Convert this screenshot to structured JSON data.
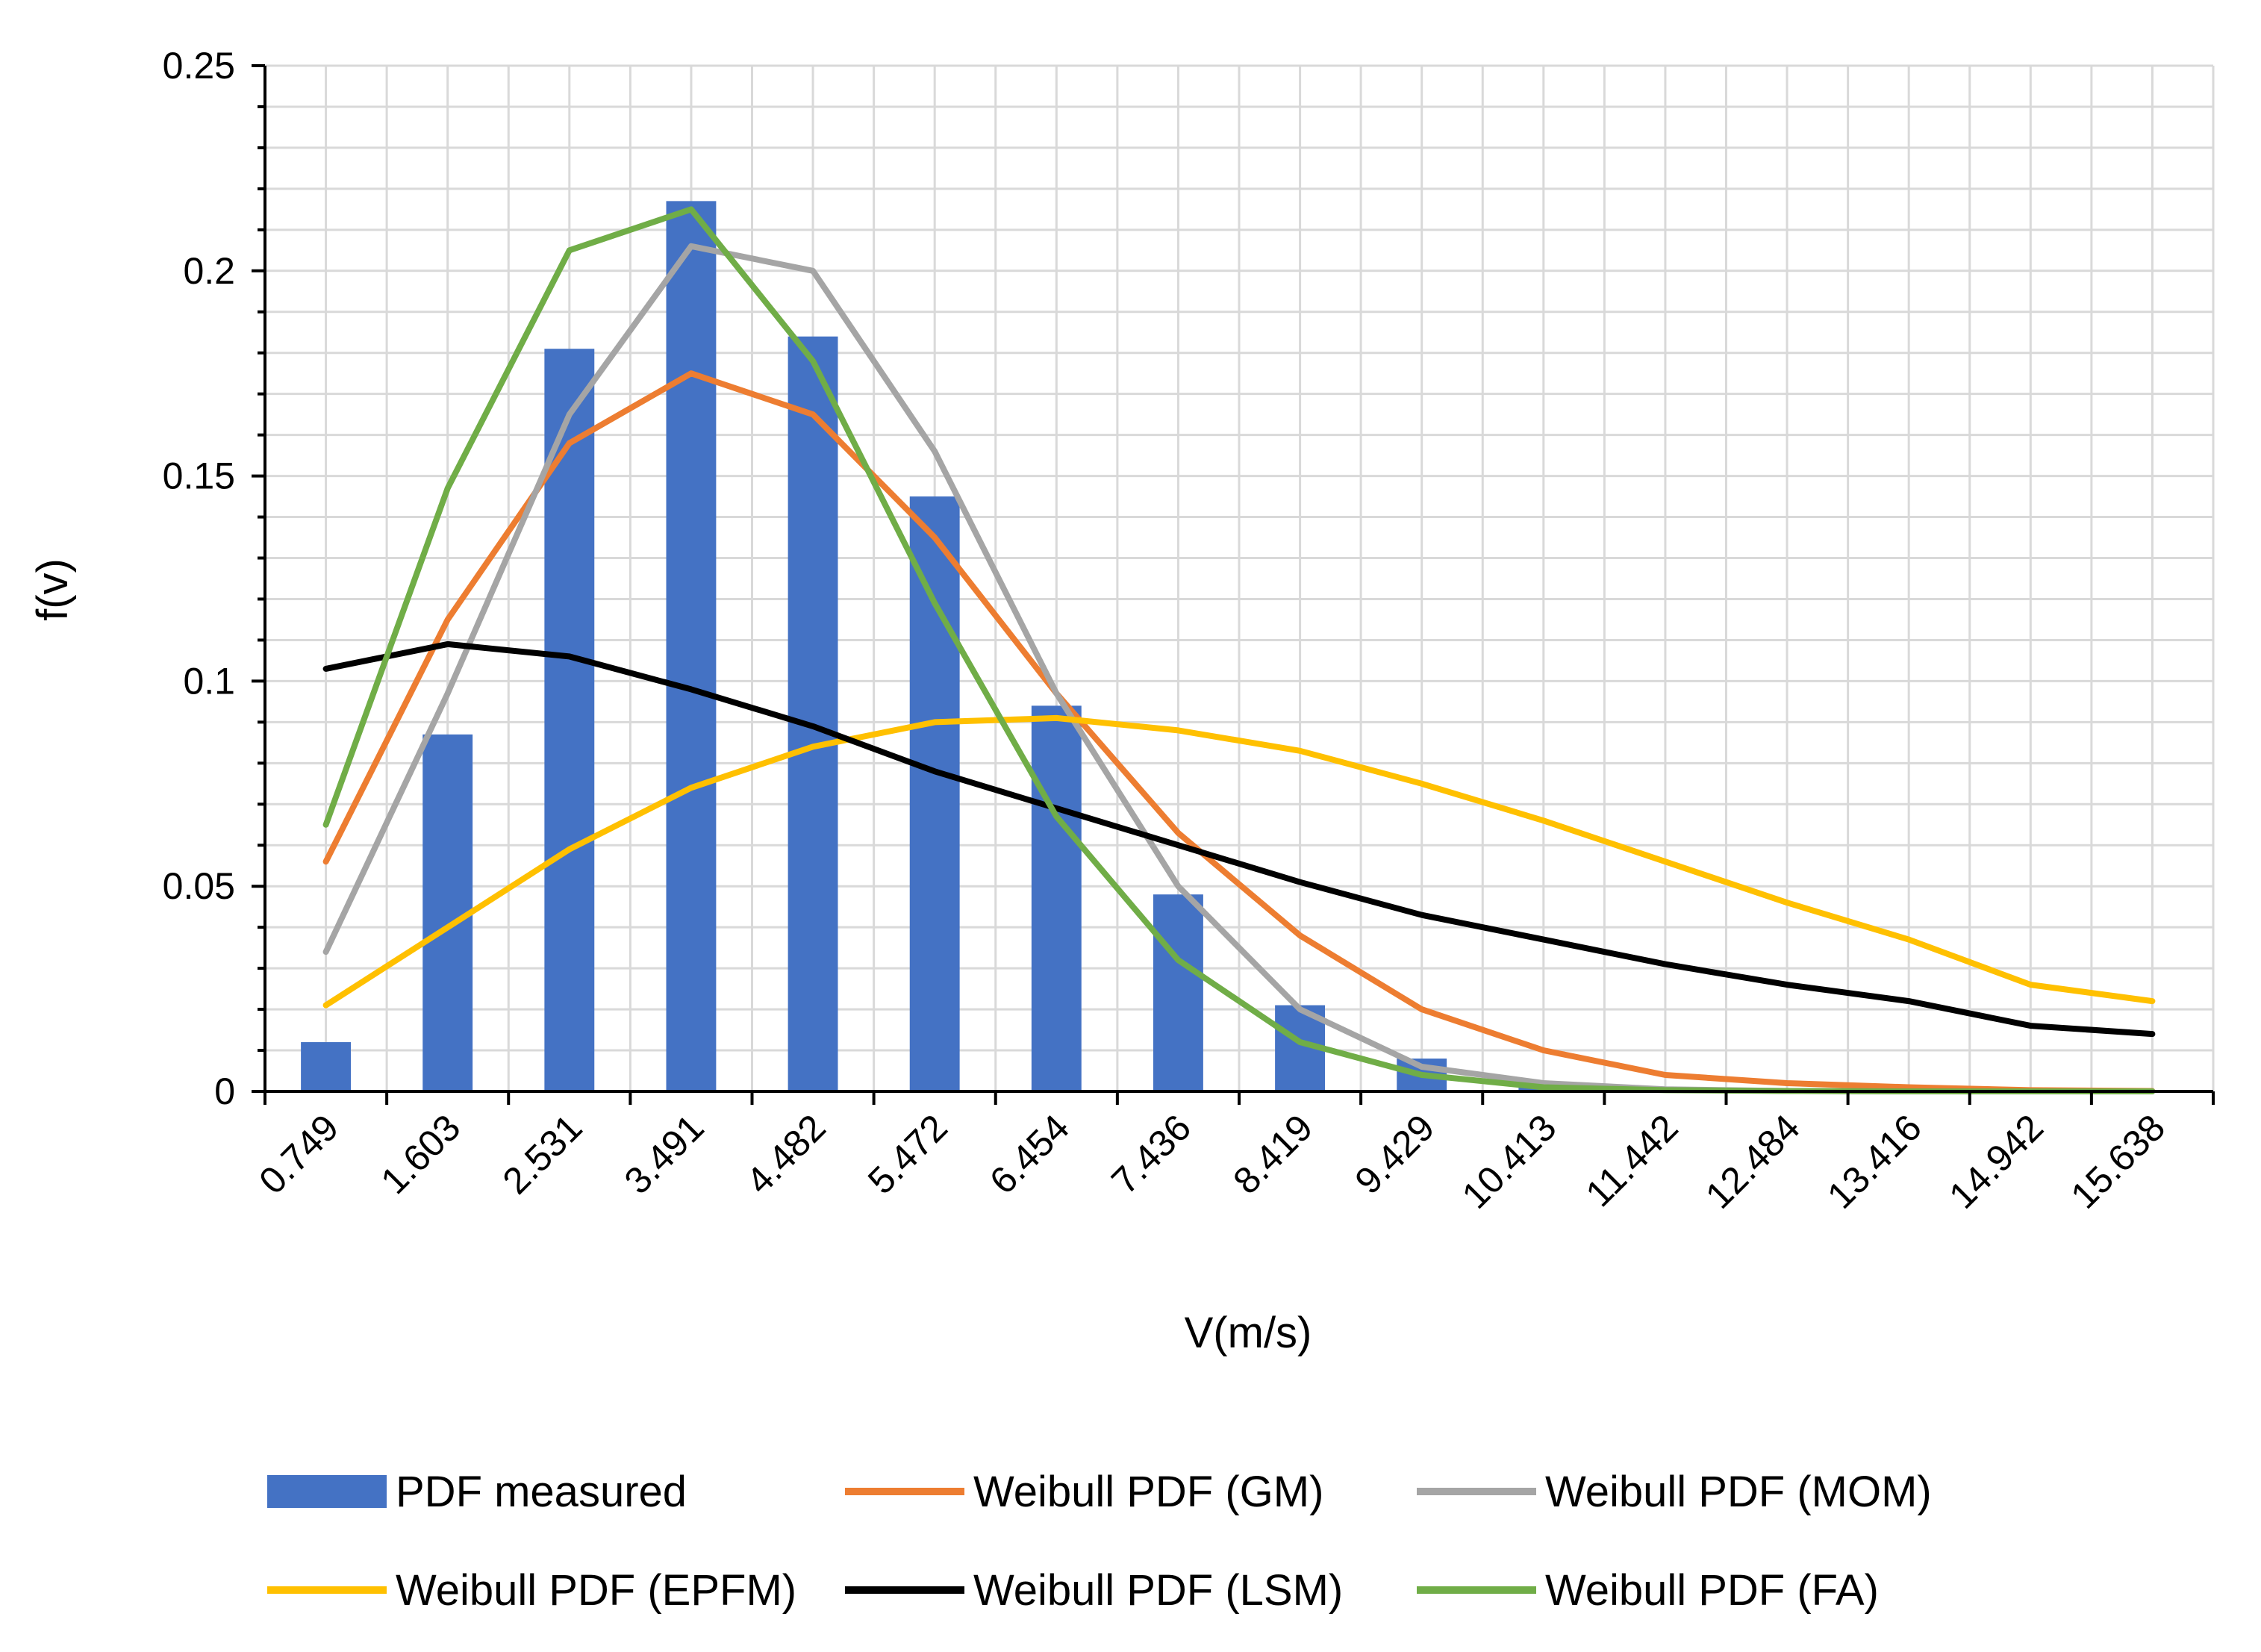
{
  "chart_data": {
    "type": "bar+line",
    "title": "",
    "xlabel": "V(m/s)",
    "ylabel": "f(v)",
    "ylim": [
      0,
      0.25
    ],
    "yticks": [
      "0",
      "0.05",
      "0.1",
      "0.15",
      "0.2",
      "0.25"
    ],
    "yticks_values": [
      0,
      0.05,
      0.1,
      0.15,
      0.2,
      0.25
    ],
    "grid": true,
    "legend_position": "bottom",
    "categories": [
      "0.749",
      "1.603",
      "2.531",
      "3.491",
      "4.482",
      "5.472",
      "6.454",
      "7.436",
      "8.419",
      "9.429",
      "10.413",
      "11.442",
      "12.484",
      "13.416",
      "14.942",
      "15.638"
    ],
    "series": [
      {
        "name": "PDF measured",
        "kind": "bar",
        "color": "#4472C4",
        "values": [
          0.012,
          0.087,
          0.181,
          0.217,
          0.184,
          0.145,
          0.094,
          0.048,
          0.021,
          0.008,
          0.002,
          0.001,
          0.0005,
          0.0003,
          0.0002,
          0.0001
        ]
      },
      {
        "name": "Weibull PDF (GM)",
        "kind": "line",
        "color": "#ED7D31",
        "values": [
          0.056,
          0.115,
          0.158,
          0.175,
          0.165,
          0.135,
          0.097,
          0.063,
          0.038,
          0.02,
          0.01,
          0.004,
          0.002,
          0.001,
          0.0003,
          0.0001
        ]
      },
      {
        "name": "Weibull PDF (MOM)",
        "kind": "line",
        "color": "#A5A5A5",
        "values": [
          0.034,
          0.097,
          0.165,
          0.206,
          0.2,
          0.156,
          0.097,
          0.05,
          0.02,
          0.006,
          0.002,
          0.0005,
          0.0001,
          0,
          0,
          0
        ]
      },
      {
        "name": "Weibull PDF (EPFM)",
        "kind": "line",
        "color": "#FFC000",
        "values": [
          0.021,
          0.04,
          0.059,
          0.074,
          0.084,
          0.09,
          0.091,
          0.088,
          0.083,
          0.075,
          0.066,
          0.056,
          0.046,
          0.037,
          0.026,
          0.022
        ]
      },
      {
        "name": "Weibull PDF (LSM)",
        "kind": "line",
        "color": "#000000",
        "values": [
          0.103,
          0.109,
          0.106,
          0.098,
          0.089,
          0.078,
          0.069,
          0.06,
          0.051,
          0.043,
          0.037,
          0.031,
          0.026,
          0.022,
          0.016,
          0.014
        ]
      },
      {
        "name": "Weibull PDF (FA)",
        "kind": "line",
        "color": "#70AD47",
        "values": [
          0.065,
          0.147,
          0.205,
          0.215,
          0.178,
          0.119,
          0.067,
          0.032,
          0.012,
          0.004,
          0.001,
          0.0003,
          0.0001,
          0,
          0,
          0
        ]
      }
    ]
  }
}
